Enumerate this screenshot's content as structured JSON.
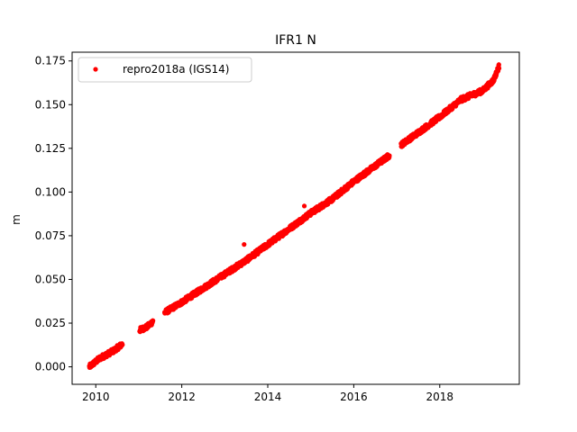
{
  "chart_data": {
    "type": "scatter",
    "title": "IFR1 N",
    "xlabel": "",
    "ylabel": "m",
    "xlim": [
      2009.45,
      2019.85
    ],
    "ylim": [
      -0.01,
      0.18
    ],
    "xticks": [
      2010,
      2012,
      2014,
      2016,
      2018
    ],
    "yticks": [
      0.0,
      0.025,
      0.05,
      0.075,
      0.1,
      0.125,
      0.15,
      0.175
    ],
    "ytick_labels": [
      "0.000",
      "0.025",
      "0.050",
      "0.075",
      "0.100",
      "0.125",
      "0.150",
      "0.175"
    ],
    "grid": false,
    "legend": {
      "position": "top-left",
      "entries": [
        "repro2018a (IGS14)"
      ]
    },
    "series": [
      {
        "name": "repro2018a (IGS14)",
        "color": "#ff0000",
        "marker": "circle",
        "segments": [
          {
            "x": [
              2009.85,
              2010.1,
              2010.4,
              2010.62
            ],
            "y": [
              0.0,
              0.005,
              0.009,
              0.013
            ]
          },
          {
            "x": [
              2011.02,
              2011.2,
              2011.33
            ],
            "y": [
              0.021,
              0.023,
              0.026
            ]
          },
          {
            "x": [
              2011.6,
              2012.0,
              2012.5,
              2013.0,
              2013.5,
              2014.0,
              2014.5,
              2015.0,
              2015.5,
              2016.0,
              2016.5,
              2016.83
            ],
            "y": [
              0.031,
              0.037,
              0.045,
              0.053,
              0.061,
              0.07,
              0.079,
              0.088,
              0.096,
              0.106,
              0.115,
              0.121
            ]
          },
          {
            "x": [
              2017.1,
              2017.5,
              2018.0,
              2018.5,
              2019.0,
              2019.25,
              2019.38
            ],
            "y": [
              0.127,
              0.134,
              0.143,
              0.153,
              0.158,
              0.164,
              0.172
            ]
          }
        ],
        "outliers": [
          {
            "x": 2013.45,
            "y": 0.07
          },
          {
            "x": 2014.85,
            "y": 0.092
          }
        ]
      }
    ]
  }
}
